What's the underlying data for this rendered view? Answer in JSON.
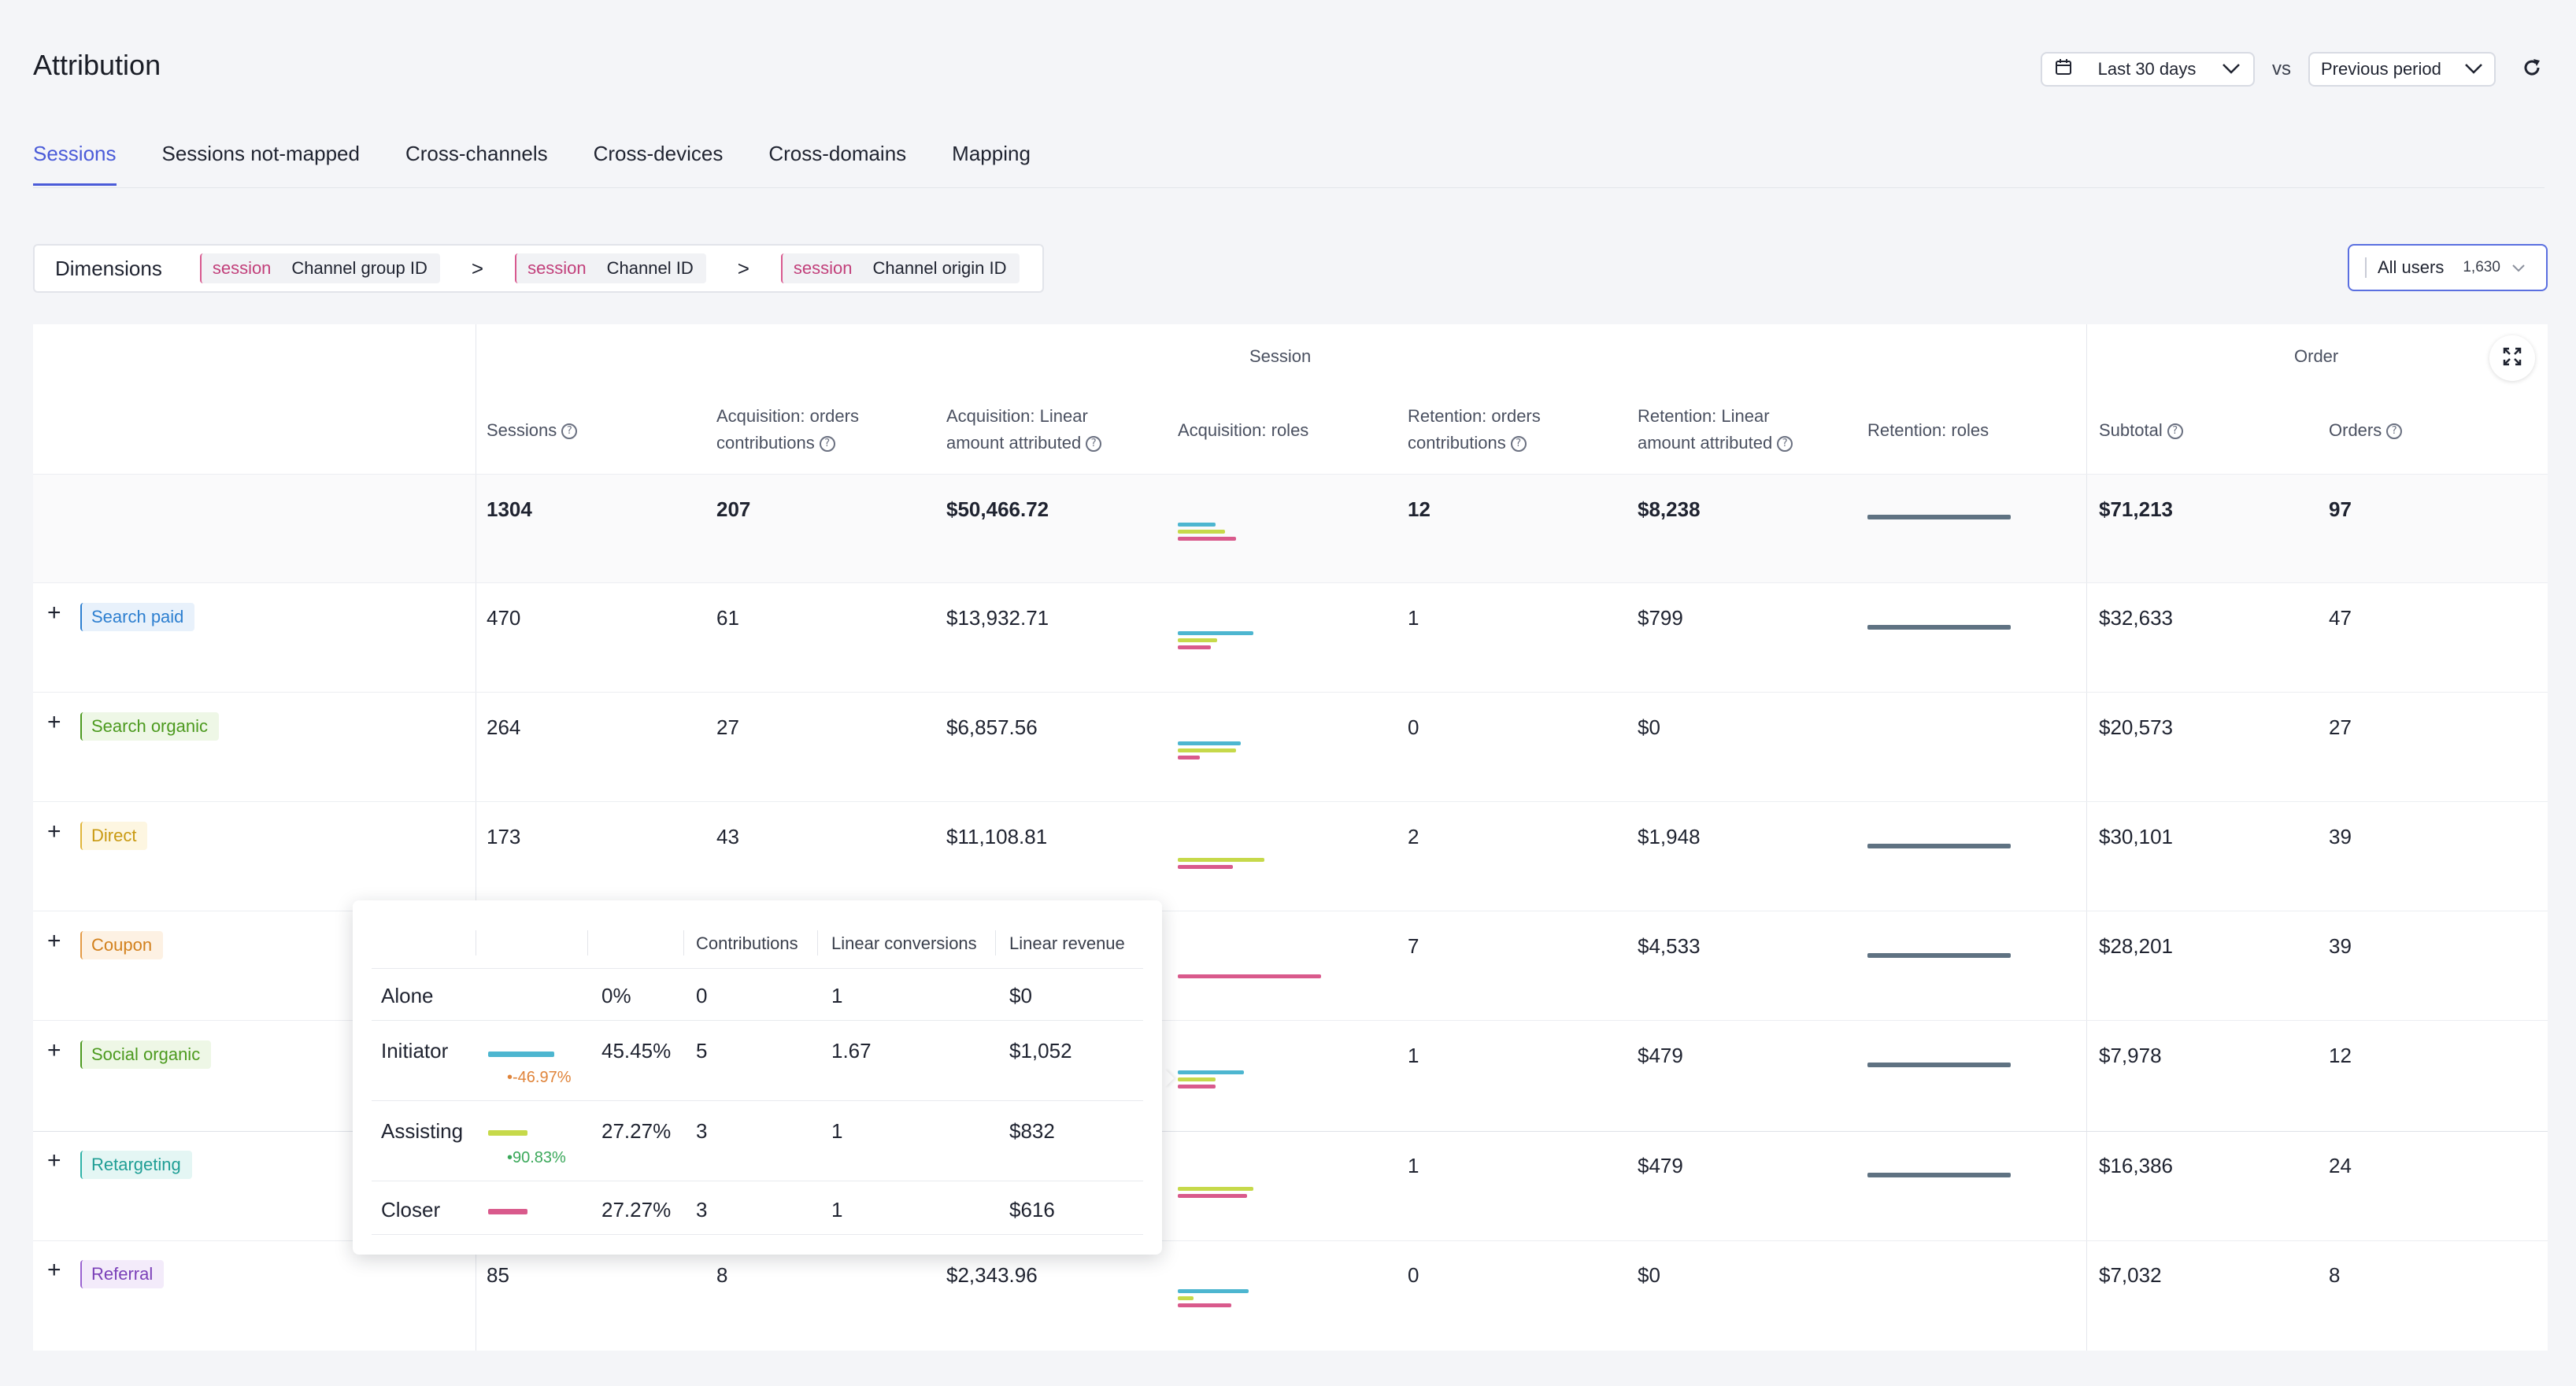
{
  "header": {
    "title": "Attribution",
    "date_range": "Last 30 days",
    "vs": "vs",
    "compare": "Previous period",
    "icons": {
      "calendar": "calendar-icon",
      "chevron": "chevron-down-icon",
      "refresh": "refresh-icon"
    }
  },
  "tabs": [
    {
      "label": "Sessions",
      "active": true
    },
    {
      "label": "Sessions not-mapped"
    },
    {
      "label": "Cross-channels"
    },
    {
      "label": "Cross-devices"
    },
    {
      "label": "Cross-domains"
    },
    {
      "label": "Mapping"
    }
  ],
  "dimensions": {
    "label": "Dimensions",
    "separator": ">",
    "chips": [
      {
        "scope": "session",
        "name": "Channel group ID"
      },
      {
        "scope": "session",
        "name": "Channel ID"
      },
      {
        "scope": "session",
        "name": "Channel origin ID"
      }
    ]
  },
  "users_filter": {
    "label": "All users",
    "count": "1,630"
  },
  "table": {
    "groups": {
      "session": "Session",
      "order": "Order"
    },
    "columns": {
      "sessions": "Sessions",
      "acq_orders": [
        "Acquisition: orders",
        "contributions"
      ],
      "acq_linear": [
        "Acquisition: Linear",
        "amount attributed"
      ],
      "acq_roles": "Acquisition: roles",
      "ret_orders": [
        "Retention: orders",
        "contributions"
      ],
      "ret_linear": [
        "Retention: Linear",
        "amount attributed"
      ],
      "ret_roles": "Retention: roles",
      "subtotal": "Subtotal",
      "orders": "Orders"
    },
    "totals": {
      "sessions": "1304",
      "acq_orders": "207",
      "acq_linear": "$50,466.72",
      "ret_orders": "12",
      "ret_linear": "$8,238",
      "subtotal": "$71,213",
      "orders": "97"
    },
    "rows": [
      {
        "channel": "Search paid",
        "color": "#2d7fd0",
        "bg": "#e8f1fb",
        "sessions": "470",
        "acq_orders": "61",
        "acq_linear": "$13,932.71",
        "ret_orders": "1",
        "ret_linear": "$799",
        "subtotal": "$32,633",
        "orders": "47"
      },
      {
        "channel": "Search organic",
        "color": "#4c9a1f",
        "bg": "#eef7e6",
        "sessions": "264",
        "acq_orders": "27",
        "acq_linear": "$6,857.56",
        "ret_orders": "0",
        "ret_linear": "$0",
        "subtotal": "$20,573",
        "orders": "27"
      },
      {
        "channel": "Direct",
        "color": "#c99a12",
        "bg": "#fdf6e1",
        "sessions": "173",
        "acq_orders": "43",
        "acq_linear": "$11,108.81",
        "ret_orders": "2",
        "ret_linear": "$1,948",
        "subtotal": "$30,101",
        "orders": "39"
      },
      {
        "channel": "Coupon",
        "color": "#d2801c",
        "bg": "#fdf1e3",
        "sessions": "",
        "acq_orders": "",
        "acq_linear": "",
        "ret_orders": "7",
        "ret_linear": "$4,533",
        "subtotal": "$28,201",
        "orders": "39"
      },
      {
        "channel": "Social organic",
        "color": "#4c9a1f",
        "bg": "#eef7e6",
        "sessions": "",
        "acq_orders": "",
        "acq_linear": "",
        "ret_orders": "1",
        "ret_linear": "$479",
        "subtotal": "$7,978",
        "orders": "12"
      },
      {
        "channel": "Retargeting",
        "color": "#1f9e95",
        "bg": "#e4f6f4",
        "sessions": "",
        "acq_orders": "",
        "acq_linear": "",
        "ret_orders": "1",
        "ret_linear": "$479",
        "subtotal": "$16,386",
        "orders": "24"
      },
      {
        "channel": "Referral",
        "color": "#7a3fb8",
        "bg": "#f3ebfa",
        "sessions": "85",
        "acq_orders": "8",
        "acq_linear": "$2,343.96",
        "ret_orders": "0",
        "ret_linear": "$0",
        "subtotal": "$7,032",
        "orders": "8"
      }
    ]
  },
  "role_colors": {
    "initiator": "#4db6d0",
    "assisting": "#c6d94a",
    "closer": "#d95a8c",
    "retention": "#5f7282"
  },
  "popover": {
    "headers": {
      "contributions": "Contributions",
      "linear_conversions": "Linear conversions",
      "linear_revenue": "Linear revenue"
    },
    "rows": [
      {
        "role": "Alone",
        "pct": "0%",
        "contributions": "0",
        "linear_conversions": "1",
        "linear_revenue": "$0",
        "share": 0
      },
      {
        "role": "Initiator",
        "pct": "45.45%",
        "delta": "•-46.97%",
        "contributions": "5",
        "linear_conversions": "1.67",
        "linear_revenue": "$1,052",
        "share": 0.4545
      },
      {
        "role": "Assisting",
        "pct": "27.27%",
        "delta": "•90.83%",
        "contributions": "3",
        "linear_conversions": "1",
        "linear_revenue": "$832",
        "share": 0.2727
      },
      {
        "role": "Closer",
        "pct": "27.27%",
        "contributions": "3",
        "linear_conversions": "1",
        "linear_revenue": "$616",
        "share": 0.2727
      }
    ]
  }
}
